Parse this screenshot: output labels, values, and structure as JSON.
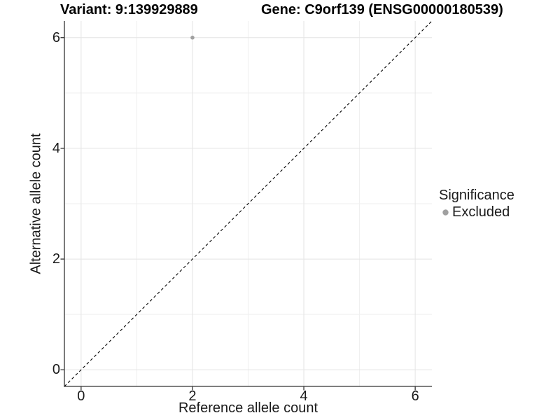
{
  "header": {
    "variant_title": "Variant: 9:139929889",
    "gene_title": "Gene: C9orf139 (ENSG00000180539)"
  },
  "axes": {
    "x_title": "Reference allele count",
    "y_title": "Alternative allele count"
  },
  "legend": {
    "title": "Significance",
    "items": [
      {
        "label": "Excluded",
        "color": "#a0a0a0"
      }
    ]
  },
  "colors": {
    "background": "#ffffff",
    "text": "#1a1a1a",
    "title": "#000000",
    "axis_line": "#333333",
    "grid_major": "#e4e4e4",
    "grid_minor": "#efefef",
    "point": "#a0a0a0",
    "reference_line": "#000000"
  },
  "chart_data": {
    "type": "scatter",
    "title": "Variant: 9:139929889   Gene: C9orf139 (ENSG00000180539)",
    "xlabel": "Reference allele count",
    "ylabel": "Alternative allele count",
    "xlim": [
      -0.3,
      6.3
    ],
    "ylim": [
      -0.3,
      6.3
    ],
    "x_ticks": [
      0,
      2,
      4,
      6
    ],
    "y_ticks": [
      0,
      2,
      4,
      6
    ],
    "grid_major": [
      0,
      2,
      4,
      6
    ],
    "grid_minor": [
      1,
      3,
      5
    ],
    "grid": "on",
    "legend_position": "right",
    "series": [
      {
        "name": "Excluded",
        "color": "#a0a0a0",
        "marker": "circle",
        "points": [
          {
            "x": 2,
            "y": 6
          }
        ]
      }
    ],
    "reference_line": {
      "kind": "identity (y = x)",
      "style": "dashed",
      "color": "#000000",
      "x0": -0.3,
      "y0": -0.3,
      "x1": 6.3,
      "y1": 6.3
    }
  }
}
